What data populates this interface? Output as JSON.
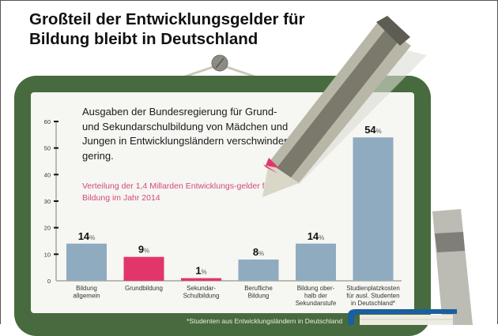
{
  "title_lines": [
    "Großteil der Entwicklungsgelder für",
    "Bildung bleibt in Deutschland"
  ],
  "intro_text": "Ausgaben der Bundesregierung für Grund- und Sekundarschulbildung von Mädchen und Jungen in Entwicklungsländern verschwindend gering.",
  "subtitle": "Verteilung der 1,4 Millarden Entwicklungs-gelder für Bildung im Jahr 2014",
  "footnote": "*Studenten aus Entwicklungsländern in Deutschland",
  "colors": {
    "board": "#476b3e",
    "bar_blue": "#8fabc0",
    "bar_pink": "#e2366a",
    "subtitle": "#d24a7c"
  },
  "chart_data": {
    "type": "bar",
    "title": "Großteil der Entwicklungsgelder für Bildung bleibt in Deutschland",
    "xlabel": "",
    "ylabel": "",
    "ylim": [
      0,
      60
    ],
    "yticks": [
      0,
      10,
      20,
      30,
      40,
      50,
      60
    ],
    "grid": false,
    "unit": "%",
    "categories": [
      [
        "Bildung",
        "allgemein"
      ],
      [
        "Grundbildung"
      ],
      [
        "Sekundar-",
        "Schulbildung"
      ],
      [
        "Berufliche",
        "Bildung"
      ],
      [
        "Bildung ober-",
        "halb der",
        "Sekundarstufe"
      ],
      [
        "Studienplatzkosten",
        "für ausl. Studenten",
        "in Deutschland*"
      ]
    ],
    "values": [
      14,
      9,
      1,
      8,
      14,
      54
    ],
    "bar_colors": [
      "blue",
      "pink",
      "pink",
      "blue",
      "blue",
      "blue"
    ]
  }
}
